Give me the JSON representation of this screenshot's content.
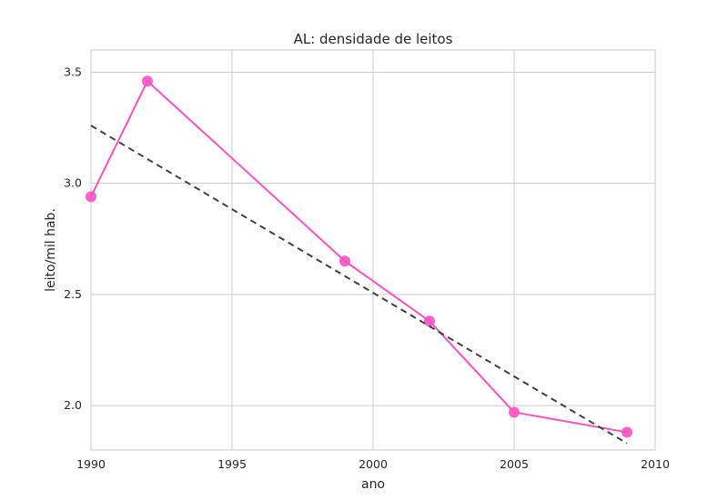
{
  "chart_data": {
    "type": "line",
    "title": "AL: densidade de leitos",
    "xlabel": "ano",
    "ylabel": "leito/mil hab.",
    "xlim": [
      1990,
      2010
    ],
    "ylim": [
      1.8,
      3.6
    ],
    "xticks": [
      1990,
      1995,
      2000,
      2005,
      2010
    ],
    "yticks": [
      2.0,
      2.5,
      3.0,
      3.5
    ],
    "xtick_labels": [
      "1990",
      "1995",
      "2000",
      "2005",
      "2010"
    ],
    "ytick_labels": [
      "2.0",
      "2.5",
      "3.0",
      "3.5"
    ],
    "grid": true,
    "series": [
      {
        "style": "line-with-markers",
        "color": "#ff4fc4",
        "x": [
          1990,
          1992,
          1999,
          2002,
          2005,
          2009
        ],
        "y": [
          2.94,
          3.46,
          2.65,
          2.38,
          1.97,
          1.88
        ]
      },
      {
        "style": "dashed-trend",
        "color": "#404040",
        "x": [
          1990,
          2009
        ],
        "y": [
          3.26,
          1.83
        ]
      }
    ]
  }
}
